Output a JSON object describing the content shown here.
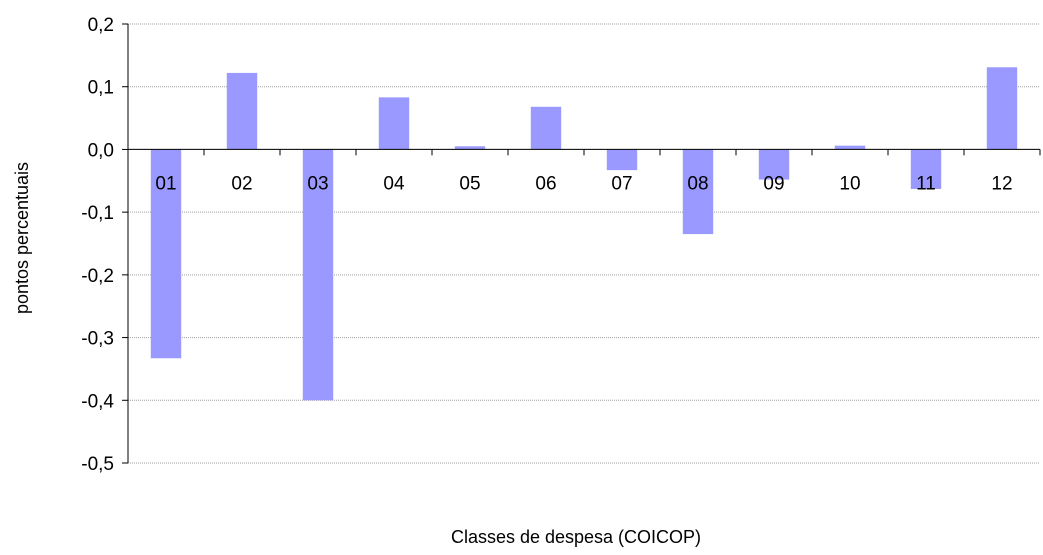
{
  "chart_data": {
    "type": "bar",
    "categories": [
      "01",
      "02",
      "03",
      "04",
      "05",
      "06",
      "07",
      "08",
      "09",
      "10",
      "11",
      "12"
    ],
    "values": [
      -0.333,
      0.122,
      -0.4,
      0.083,
      0.005,
      0.068,
      -0.033,
      -0.135,
      -0.048,
      0.006,
      -0.063,
      0.131
    ],
    "xlabel": "Classes de despesa (COICOP)",
    "ylabel": "pontos percentuais",
    "ylim": [
      -0.5,
      0.2
    ],
    "yticks": [
      "0,2",
      "0,1",
      "0,0",
      "-0,1",
      "-0,2",
      "-0,3",
      "-0,4",
      "-0,5"
    ],
    "ytick_values": [
      0.2,
      0.1,
      0.0,
      -0.1,
      -0.2,
      -0.3,
      -0.4,
      -0.5
    ],
    "grid": true,
    "legend": "none",
    "bar_color": "#9999ff",
    "grid_color": "#a0a0a0"
  }
}
